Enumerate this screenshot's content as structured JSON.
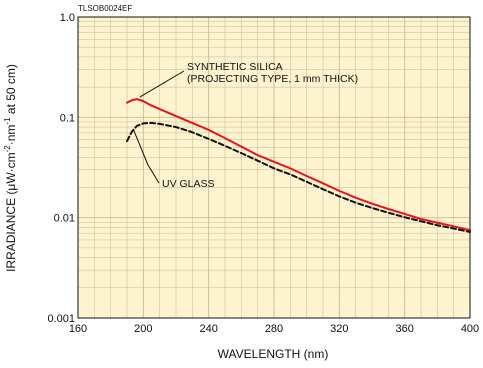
{
  "chart_data": {
    "type": "line",
    "doc_code": "TLSOB0024EF",
    "xlabel": "WAVELENGTH (nm)",
    "ylabel_parts": [
      "IRRADIANCE (μW·cm",
      "-2",
      "·nm",
      "-1",
      " at 50 cm)"
    ],
    "xlim": [
      160,
      400
    ],
    "ylim": [
      0.001,
      1.0
    ],
    "yscale": "log",
    "grid": true,
    "plot_background": "#fdf3cf",
    "grid_color": "#c8b994",
    "x_ticks": [
      160,
      200,
      240,
      280,
      320,
      360,
      400
    ],
    "x_tick_labels": [
      "160",
      "200",
      "240",
      "280",
      "320",
      "360",
      "400"
    ],
    "y_ticks": [
      0.001,
      0.01,
      0.1,
      1.0
    ],
    "y_tick_labels": [
      "0.001",
      "0.01",
      "0.1",
      "1.0"
    ],
    "series": [
      {
        "name_lines": [
          "SYNTHETIC SILICA",
          "(PROJECTING TYPE, 1 mm THICK)"
        ],
        "color": "#e8141b",
        "dash": "solid",
        "x": [
          190,
          193,
          196,
          200,
          205,
          210,
          220,
          230,
          240,
          250,
          260,
          270,
          280,
          290,
          300,
          310,
          320,
          330,
          340,
          350,
          360,
          370,
          380,
          390,
          400
        ],
        "y": [
          0.14,
          0.148,
          0.152,
          0.145,
          0.131,
          0.121,
          0.103,
          0.088,
          0.075,
          0.062,
          0.051,
          0.042,
          0.036,
          0.031,
          0.026,
          0.022,
          0.0185,
          0.0158,
          0.0138,
          0.0122,
          0.0109,
          0.0097,
          0.0089,
          0.0082,
          0.0075
        ]
      },
      {
        "name_lines": [
          "UV GLASS"
        ],
        "color": "#111111",
        "dash": "dashed",
        "x": [
          190,
          193,
          196,
          200,
          205,
          210,
          220,
          230,
          240,
          250,
          260,
          270,
          280,
          290,
          300,
          310,
          320,
          330,
          340,
          350,
          360,
          370,
          380,
          390,
          400
        ],
        "y": [
          0.058,
          0.072,
          0.082,
          0.087,
          0.088,
          0.086,
          0.08,
          0.071,
          0.061,
          0.052,
          0.044,
          0.037,
          0.031,
          0.027,
          0.0228,
          0.0192,
          0.0163,
          0.0141,
          0.0125,
          0.0112,
          0.0101,
          0.0092,
          0.0084,
          0.0078,
          0.0072
        ]
      }
    ]
  }
}
